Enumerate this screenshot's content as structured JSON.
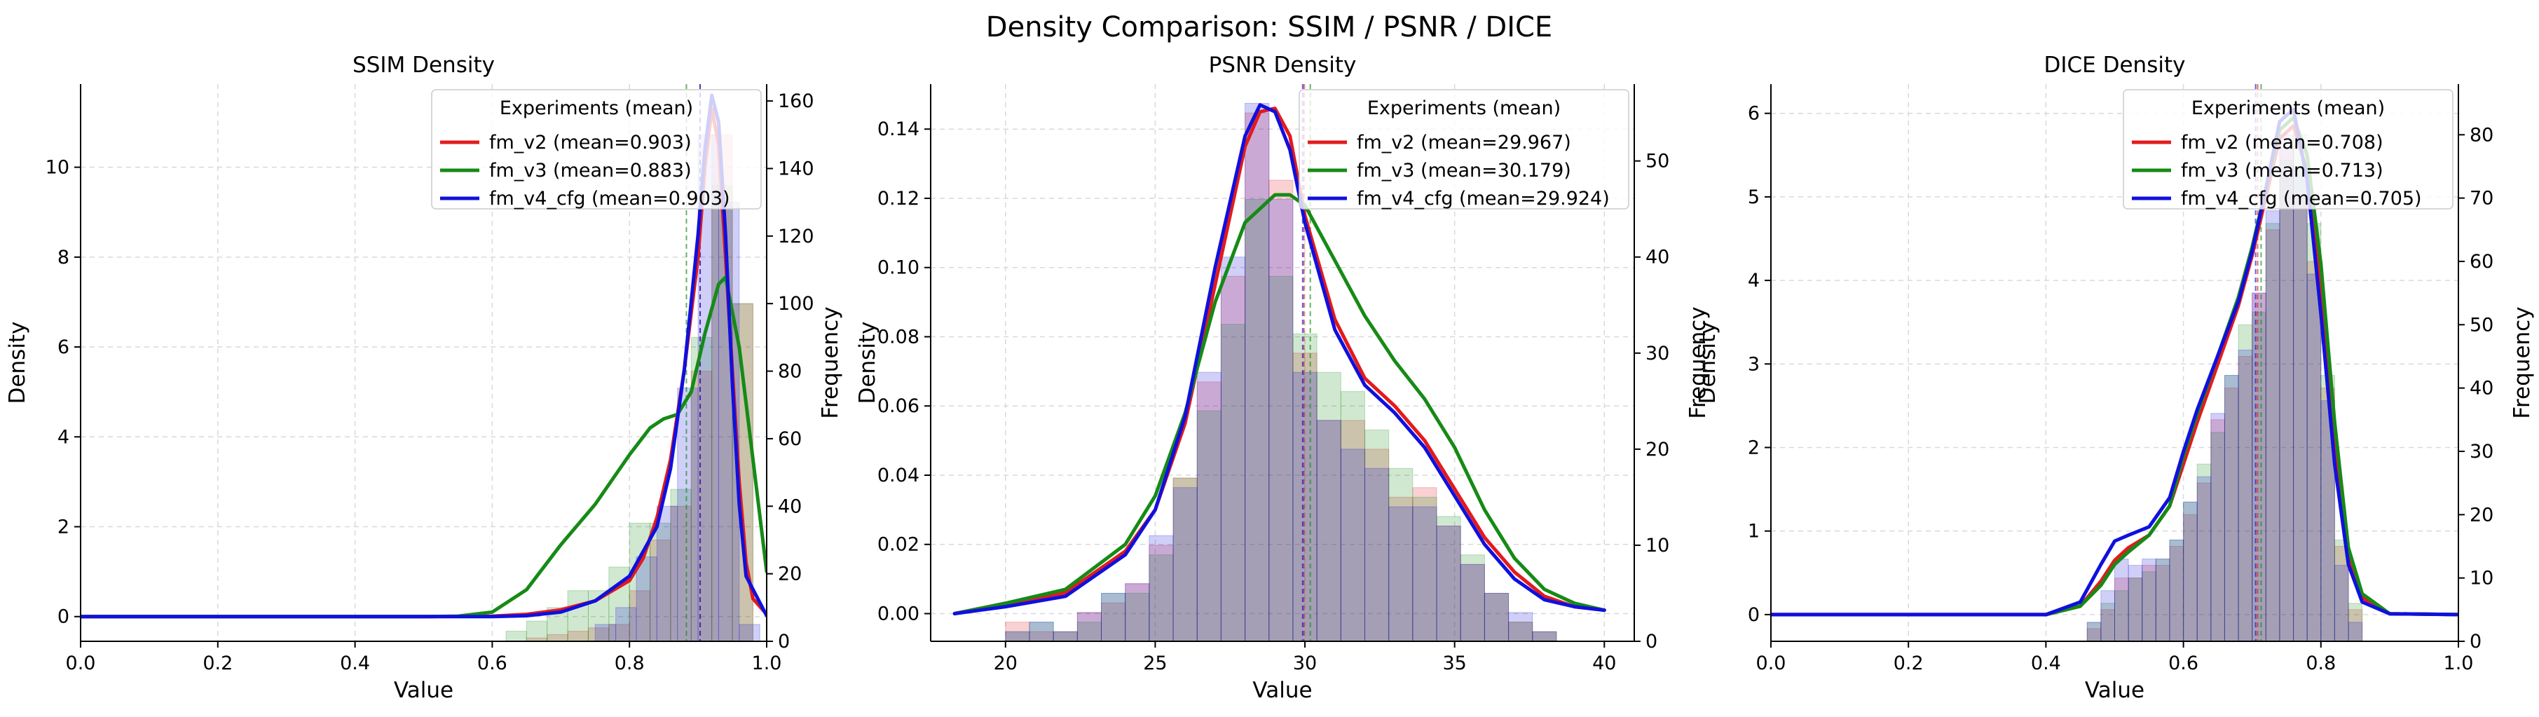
{
  "figure": {
    "title": "Density Comparison: SSIM / PSNR / DICE",
    "colors": {
      "fm_v2": "#e31a1c",
      "fm_v3": "#168a16",
      "fm_v4_cfg": "#1010dd"
    }
  },
  "chart_data": [
    {
      "type": "histogram+kde",
      "title": "SSIM Density",
      "xlabel": "Value",
      "ylabel": "Density",
      "y2label": "Frequency",
      "xlim": [
        0.0,
        1.0
      ],
      "ylim": [
        -0.55,
        11.85
      ],
      "y2lim": [
        0,
        165
      ],
      "xticks": [
        "0.0",
        "0.2",
        "0.4",
        "0.6",
        "0.8",
        "1.0"
      ],
      "yticks": [
        "0",
        "2",
        "4",
        "6",
        "8",
        "10"
      ],
      "y2ticks": [
        "0",
        "20",
        "40",
        "60",
        "80",
        "100",
        "120",
        "140",
        "160"
      ],
      "grid": true,
      "legend": {
        "title": "Experiments (mean)",
        "position": "top-right",
        "entries": [
          "fm_v2 (mean=0.903)",
          "fm_v3 (mean=0.883)",
          "fm_v4_cfg (mean=0.903)"
        ]
      },
      "series": [
        {
          "name": "fm_v2",
          "mean": 0.903,
          "hist": {
            "edges": [
              0.65,
              0.68,
              0.71,
              0.74,
              0.77,
              0.8,
              0.83,
              0.86,
              0.89,
              0.92,
              0.95,
              0.98
            ],
            "counts": [
              1,
              2,
              3,
              4,
              5,
              15,
              30,
              40,
              80,
              150,
              100
            ]
          },
          "kde": {
            "x": [
              0.0,
              0.5,
              0.6,
              0.65,
              0.7,
              0.75,
              0.8,
              0.82,
              0.84,
              0.86,
              0.88,
              0.9,
              0.91,
              0.92,
              0.93,
              0.94,
              0.95,
              0.96,
              0.97,
              0.98,
              1.0
            ],
            "y": [
              0,
              0,
              0.01,
              0.05,
              0.15,
              0.35,
              0.8,
              1.3,
              2.2,
              3.5,
              5.5,
              8.0,
              10.0,
              11.3,
              10.5,
              8.0,
              5.5,
              3.0,
              1.2,
              0.4,
              0.05
            ]
          }
        },
        {
          "name": "fm_v3",
          "mean": 0.883,
          "hist": {
            "edges": [
              0.62,
              0.65,
              0.68,
              0.71,
              0.74,
              0.77,
              0.8,
              0.83,
              0.86,
              0.89,
              0.92,
              0.95,
              0.98
            ],
            "counts": [
              3,
              6,
              10,
              15,
              15,
              22,
              35,
              35,
              45,
              90,
              135,
              100
            ]
          },
          "kde": {
            "x": [
              0.0,
              0.5,
              0.55,
              0.6,
              0.65,
              0.7,
              0.75,
              0.8,
              0.83,
              0.85,
              0.87,
              0.89,
              0.91,
              0.93,
              0.94,
              0.96,
              0.98,
              1.0
            ],
            "y": [
              0,
              0,
              0.01,
              0.1,
              0.6,
              1.6,
              2.5,
              3.6,
              4.2,
              4.4,
              4.5,
              5.0,
              6.3,
              7.4,
              7.55,
              6.0,
              3.5,
              1.0
            ]
          }
        },
        {
          "name": "fm_v4_cfg",
          "mean": 0.903,
          "hist": {
            "edges": [
              0.75,
              0.78,
              0.81,
              0.84,
              0.87,
              0.9,
              0.93,
              0.96,
              0.99
            ],
            "counts": [
              5,
              10,
              25,
              40,
              75,
              150,
              130,
              5
            ]
          },
          "kde": {
            "x": [
              0.0,
              0.6,
              0.65,
              0.7,
              0.75,
              0.8,
              0.84,
              0.86,
              0.88,
              0.9,
              0.91,
              0.92,
              0.93,
              0.94,
              0.95,
              0.96,
              0.97,
              1.0
            ],
            "y": [
              0,
              0,
              0.02,
              0.1,
              0.35,
              0.9,
              2.0,
              3.3,
              5.5,
              8.5,
              10.4,
              11.6,
              11.0,
              8.5,
              5.2,
              2.5,
              0.9,
              0.02
            ]
          }
        }
      ]
    },
    {
      "type": "histogram+kde",
      "title": "PSNR Density",
      "xlabel": "Value",
      "ylabel": "Density",
      "y2label": "Frequency",
      "xlim": [
        17.5,
        41.0
      ],
      "ylim": [
        -0.008,
        0.153
      ],
      "y2lim": [
        0,
        58
      ],
      "xticks": [
        "20",
        "25",
        "30",
        "35",
        "40"
      ],
      "yticks": [
        "0.00",
        "0.02",
        "0.04",
        "0.06",
        "0.08",
        "0.10",
        "0.12",
        "0.14"
      ],
      "y2ticks": [
        "0",
        "10",
        "20",
        "30",
        "40",
        "50"
      ],
      "grid": true,
      "legend": {
        "title": "Experiments (mean)",
        "position": "top-right",
        "entries": [
          "fm_v2 (mean=29.967)",
          "fm_v3 (mean=30.179)",
          "fm_v4_cfg (mean=29.924)"
        ]
      },
      "series": [
        {
          "name": "fm_v2",
          "mean": 29.967,
          "hist": {
            "edges": [
              20,
              20.8,
              21.6,
              22.4,
              23.2,
              24,
              24.8,
              25.6,
              26.4,
              27.2,
              28,
              28.8,
              29.6,
              30.4,
              31.2,
              32,
              32.8,
              33.6,
              34.4,
              35.2,
              36,
              36.8,
              37.6,
              38.4
            ],
            "counts": [
              2,
              1,
              1,
              3,
              4,
              6,
              10,
              17,
              27,
              38,
              55,
              48,
              30,
              23,
              23,
              20,
              15,
              16,
              12,
              8,
              5,
              2,
              1
            ]
          },
          "kde": {
            "x": [
              18.3,
              20,
              22,
              24,
              25,
              26,
              27,
              28,
              28.5,
              29,
              29.5,
              30,
              31,
              32,
              33,
              34,
              35,
              36,
              37,
              38,
              39,
              40
            ],
            "y": [
              0,
              0.003,
              0.006,
              0.018,
              0.03,
              0.055,
              0.095,
              0.135,
              0.145,
              0.146,
              0.138,
              0.115,
              0.085,
              0.068,
              0.06,
              0.05,
              0.036,
              0.022,
              0.012,
              0.005,
              0.002,
              0.001
            ]
          }
        },
        {
          "name": "fm_v3",
          "mean": 30.179,
          "hist": {
            "edges": [
              20,
              20.8,
              21.6,
              22.4,
              23.2,
              24,
              24.8,
              25.6,
              26.4,
              27.2,
              28,
              28.8,
              29.6,
              30.4,
              31.2,
              32,
              32.8,
              33.6,
              34.4,
              35.2,
              36,
              36.8,
              37.6,
              38.4
            ],
            "counts": [
              1,
              2,
              1,
              2,
              5,
              5,
              9,
              17,
              24,
              33,
              46,
              38,
              32,
              28,
              26,
              22,
              18,
              15,
              13,
              9,
              5,
              2,
              1
            ]
          },
          "kde": {
            "x": [
              18.3,
              20,
              22,
              24,
              25,
              26,
              27,
              28,
              29,
              29.5,
              30,
              31,
              32,
              33,
              34,
              35,
              36,
              37,
              38,
              39,
              40
            ],
            "y": [
              0,
              0.003,
              0.007,
              0.02,
              0.034,
              0.058,
              0.09,
              0.113,
              0.121,
              0.121,
              0.118,
              0.102,
              0.086,
              0.073,
              0.062,
              0.048,
              0.03,
              0.016,
              0.007,
              0.003,
              0.001
            ]
          }
        },
        {
          "name": "fm_v4_cfg",
          "mean": 29.924,
          "hist": {
            "edges": [
              20,
              20.8,
              21.6,
              22.4,
              23.2,
              24,
              24.8,
              25.6,
              26.4,
              27.2,
              28,
              28.8,
              29.6,
              30.4,
              31.2,
              32,
              32.8,
              33.6,
              34.4,
              35.2,
              36,
              36.8,
              37.6,
              38.4
            ],
            "counts": [
              1,
              2,
              1,
              3,
              5,
              6,
              11,
              16,
              28,
              40,
              56,
              46,
              28,
              23,
              20,
              18,
              14,
              14,
              12,
              8,
              5,
              3,
              1
            ]
          },
          "kde": {
            "x": [
              18.3,
              20,
              22,
              24,
              25,
              26,
              27,
              28,
              28.5,
              29,
              29.5,
              30,
              31,
              32,
              33,
              34,
              35,
              36,
              37,
              38,
              39,
              40
            ],
            "y": [
              0,
              0.002,
              0.005,
              0.017,
              0.03,
              0.057,
              0.1,
              0.138,
              0.147,
              0.145,
              0.134,
              0.113,
              0.082,
              0.066,
              0.058,
              0.048,
              0.034,
              0.02,
              0.01,
              0.004,
              0.002,
              0.001
            ]
          }
        }
      ]
    },
    {
      "type": "histogram+kde",
      "title": "DICE Density",
      "xlabel": "Value",
      "ylabel": "Density",
      "y2label": "Frequency",
      "xlim": [
        0.0,
        1.0
      ],
      "ylim": [
        -0.32,
        6.35
      ],
      "y2lim": [
        0,
        88
      ],
      "xticks": [
        "0.0",
        "0.2",
        "0.4",
        "0.6",
        "0.8",
        "1.0"
      ],
      "yticks": [
        "0",
        "1",
        "2",
        "3",
        "4",
        "5",
        "6"
      ],
      "y2ticks": [
        "0",
        "10",
        "20",
        "30",
        "40",
        "50",
        "60",
        "70",
        "80"
      ],
      "grid": true,
      "legend": {
        "title": "Experiments (mean)",
        "position": "top-right",
        "entries": [
          "fm_v2 (mean=0.708)",
          "fm_v3 (mean=0.713)",
          "fm_v4_cfg (mean=0.705)"
        ]
      },
      "series": [
        {
          "name": "fm_v2",
          "mean": 0.708,
          "hist": {
            "edges": [
              0.46,
              0.48,
              0.5,
              0.52,
              0.54,
              0.56,
              0.58,
              0.6,
              0.62,
              0.64,
              0.66,
              0.68,
              0.7,
              0.72,
              0.74,
              0.76,
              0.78,
              0.8,
              0.82,
              0.84,
              0.86
            ],
            "counts": [
              2,
              5,
              10,
              10,
              12,
              12,
              15,
              20,
              25,
              35,
              40,
              45,
              55,
              65,
              78,
              70,
              60,
              40,
              15,
              5
            ]
          },
          "kde": {
            "x": [
              0.0,
              0.4,
              0.45,
              0.48,
              0.5,
              0.52,
              0.55,
              0.58,
              0.6,
              0.62,
              0.65,
              0.68,
              0.7,
              0.72,
              0.74,
              0.76,
              0.78,
              0.8,
              0.82,
              0.84,
              0.86,
              0.9,
              1.0
            ],
            "y": [
              0,
              0,
              0.1,
              0.4,
              0.65,
              0.8,
              0.95,
              1.3,
              1.8,
              2.3,
              3.0,
              3.7,
              4.3,
              5.0,
              5.7,
              5.85,
              5.3,
              3.9,
              2.0,
              0.7,
              0.2,
              0.01,
              0
            ]
          }
        },
        {
          "name": "fm_v3",
          "mean": 0.713,
          "hist": {
            "edges": [
              0.46,
              0.48,
              0.5,
              0.52,
              0.54,
              0.56,
              0.58,
              0.6,
              0.62,
              0.64,
              0.66,
              0.68,
              0.7,
              0.72,
              0.74,
              0.76,
              0.78,
              0.8,
              0.82,
              0.84,
              0.86
            ],
            "counts": [
              3,
              6,
              8,
              10,
              11,
              13,
              16,
              22,
              28,
              33,
              42,
              50,
              52,
              66,
              76,
              80,
              66,
              42,
              16,
              6
            ]
          },
          "kde": {
            "x": [
              0.0,
              0.4,
              0.45,
              0.48,
              0.5,
              0.52,
              0.55,
              0.58,
              0.6,
              0.62,
              0.65,
              0.68,
              0.7,
              0.72,
              0.74,
              0.76,
              0.78,
              0.8,
              0.82,
              0.84,
              0.86,
              0.9,
              1.0
            ],
            "y": [
              0,
              0,
              0.1,
              0.35,
              0.6,
              0.75,
              0.95,
              1.3,
              1.9,
              2.4,
              3.1,
              3.8,
              4.4,
              5.1,
              5.8,
              5.95,
              5.5,
              4.2,
              2.3,
              0.8,
              0.25,
              0.01,
              0
            ]
          }
        },
        {
          "name": "fm_v4_cfg",
          "mean": 0.705,
          "hist": {
            "edges": [
              0.46,
              0.48,
              0.5,
              0.52,
              0.54,
              0.56,
              0.58,
              0.6,
              0.62,
              0.64,
              0.66,
              0.68,
              0.7,
              0.72,
              0.74,
              0.76,
              0.78,
              0.8,
              0.82,
              0.84,
              0.86
            ],
            "counts": [
              3,
              8,
              13,
              12,
              13,
              13,
              16,
              22,
              26,
              36,
              42,
              46,
              55,
              68,
              80,
              75,
              58,
              38,
              12,
              3
            ]
          },
          "kde": {
            "x": [
              0.0,
              0.4,
              0.45,
              0.48,
              0.5,
              0.52,
              0.55,
              0.58,
              0.6,
              0.62,
              0.65,
              0.68,
              0.7,
              0.72,
              0.74,
              0.76,
              0.78,
              0.8,
              0.82,
              0.84,
              0.86,
              0.9,
              1.0
            ],
            "y": [
              0,
              0,
              0.15,
              0.6,
              0.88,
              0.95,
              1.05,
              1.4,
              1.95,
              2.45,
              3.1,
              3.75,
              4.35,
              5.1,
              5.9,
              6.05,
              5.2,
              3.6,
              1.8,
              0.6,
              0.15,
              0.01,
              0
            ]
          }
        }
      ]
    }
  ]
}
